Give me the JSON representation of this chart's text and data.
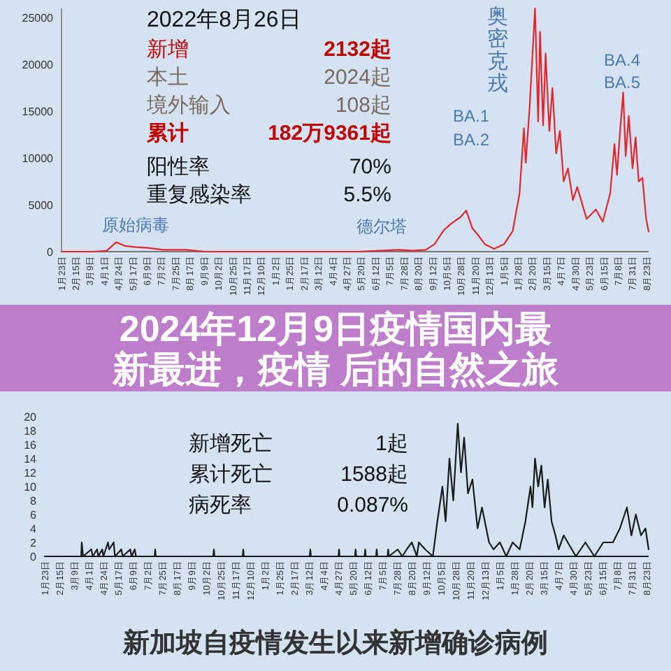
{
  "chart_data": [
    {
      "type": "line",
      "color": "#e3262c",
      "x": [
        "2020-01-23",
        "2020-03-15",
        "2020-04-05",
        "2020-04-20",
        "2020-05-05",
        "2020-05-20",
        "2020-06-10",
        "2020-07-05",
        "2020-08-10",
        "2020-09-10",
        "2020-10-15",
        "2021-01-15",
        "2021-04-20",
        "2021-05-15",
        "2021-07-20",
        "2021-08-10",
        "2021-09-01",
        "2021-09-15",
        "2021-09-30",
        "2021-10-12",
        "2021-10-27",
        "2021-11-05",
        "2021-11-15",
        "2021-11-25",
        "2021-12-05",
        "2021-12-20",
        "2022-01-05",
        "2022-01-19",
        "2022-01-30",
        "2022-02-06",
        "2022-02-09",
        "2022-02-15",
        "2022-02-24",
        "2022-03-01",
        "2022-03-04",
        "2022-03-09",
        "2022-03-13",
        "2022-03-19",
        "2022-03-24",
        "2022-03-30",
        "2022-04-05",
        "2022-04-11",
        "2022-04-18",
        "2022-04-26",
        "2022-05-03",
        "2022-05-18",
        "2022-06-02",
        "2022-06-13",
        "2022-06-25",
        "2022-07-02",
        "2022-07-06",
        "2022-07-11",
        "2022-07-16",
        "2022-07-20",
        "2022-07-25",
        "2022-07-31",
        "2022-08-05",
        "2022-08-10",
        "2022-08-16",
        "2022-08-22",
        "2022-08-26"
      ],
      "values": [
        0,
        0,
        100,
        1000,
        600,
        500,
        400,
        200,
        200,
        0,
        0,
        0,
        0,
        0,
        200,
        100,
        200,
        800,
        2300,
        3000,
        3700,
        4400,
        2500,
        1700,
        800,
        300,
        800,
        2200,
        6200,
        13200,
        9500,
        15200,
        26000,
        13900,
        23500,
        13500,
        21200,
        12900,
        17500,
        10500,
        12900,
        7500,
        8900,
        5500,
        6900,
        3500,
        4500,
        3200,
        6200,
        11500,
        8200,
        12900,
        17000,
        10200,
        14500,
        8900,
        12200,
        7500,
        7900,
        3500,
        2132
      ],
      "ylim": [
        0,
        26000
      ],
      "yticks": [
        0,
        5000,
        10000,
        15000,
        20000,
        25000
      ],
      "xlim": [
        "2020-01-23",
        "2022-08-26"
      ],
      "xticks": [
        {
          "value": "2020-01-23",
          "label": "1月23日"
        },
        {
          "value": "2020-02-15",
          "label": "2月15日"
        },
        {
          "value": "2020-03-09",
          "label": "3月9日"
        },
        {
          "value": "2020-04-01",
          "label": "4月1日"
        },
        {
          "value": "2020-04-24",
          "label": "4月24日"
        },
        {
          "value": "2020-05-17",
          "label": "5月17日"
        },
        {
          "value": "2020-06-09",
          "label": "6月9日"
        },
        {
          "value": "2020-07-02",
          "label": "7月2日"
        },
        {
          "value": "2020-07-25",
          "label": "7月25日"
        },
        {
          "value": "2020-08-17",
          "label": "8月17日"
        },
        {
          "value": "2020-09-09",
          "label": "9月9日"
        },
        {
          "value": "2020-10-02",
          "label": "10月2日"
        },
        {
          "value": "2020-10-25",
          "label": "10月25日"
        },
        {
          "value": "2020-11-17",
          "label": "11月17日"
        },
        {
          "value": "2020-12-10",
          "label": "12月10日"
        },
        {
          "value": "2021-01-02",
          "label": "1月2日"
        },
        {
          "value": "2021-01-25",
          "label": "1月25日"
        },
        {
          "value": "2021-02-17",
          "label": "2月17日"
        },
        {
          "value": "2021-03-12",
          "label": "3月12日"
        },
        {
          "value": "2021-04-04",
          "label": "4月4日"
        },
        {
          "value": "2021-04-27",
          "label": "4月27日"
        },
        {
          "value": "2021-05-20",
          "label": "5月20日"
        },
        {
          "value": "2021-06-12",
          "label": "6月12日"
        },
        {
          "value": "2021-07-05",
          "label": "7月5日"
        },
        {
          "value": "2021-07-28",
          "label": "7月28日"
        },
        {
          "value": "2021-08-20",
          "label": "8月20日"
        },
        {
          "value": "2021-09-12",
          "label": "9月12日"
        },
        {
          "value": "2021-10-05",
          "label": "10月5日"
        },
        {
          "value": "2021-10-28",
          "label": "10月28日"
        },
        {
          "value": "2021-11-20",
          "label": "11月20日"
        },
        {
          "value": "2021-12-13",
          "label": "12月13日"
        },
        {
          "value": "2022-01-05",
          "label": "1月5日"
        },
        {
          "value": "2022-01-28",
          "label": "1月28日"
        },
        {
          "value": "2022-02-20",
          "label": "2月20日"
        },
        {
          "value": "2022-03-15",
          "label": "3月15日"
        },
        {
          "value": "2022-04-07",
          "label": "4月7日"
        },
        {
          "value": "2022-04-30",
          "label": "4月30日"
        },
        {
          "value": "2022-05-23",
          "label": "5月23日"
        },
        {
          "value": "2022-06-15",
          "label": "6月15日"
        },
        {
          "value": "2022-07-08",
          "label": "7月8日"
        },
        {
          "value": "2022-07-31",
          "label": "7月31日"
        },
        {
          "value": "2022-08-23",
          "label": "8月23日"
        }
      ],
      "annotations": [
        "2022年8月26日",
        "新增",
        "2132起",
        "本土",
        "2024起",
        "境外输入",
        "108起",
        "累计",
        "182万9361起",
        "阳性率",
        "70%",
        "重复感染率",
        "5.5%",
        "奥密克戎",
        "BA.1",
        "BA.2",
        "BA.4",
        "BA.5",
        "原始病毒",
        "德尔塔"
      ]
    },
    {
      "type": "line",
      "color": "#1a1a1a",
      "title": "2024年12月9日疫情国内最新最进，疫情 后的自然之旅",
      "x": [
        "2020-01-23",
        "2020-03-20",
        "2020-03-21",
        "2020-03-23",
        "2020-04-05",
        "2020-04-07",
        "2020-04-14",
        "2020-04-16",
        "2020-04-22",
        "2020-04-24",
        "2020-05-01",
        "2020-05-03",
        "2020-05-10",
        "2020-05-12",
        "2020-05-22",
        "2020-05-24",
        "2020-06-05",
        "2020-06-07",
        "2020-06-12",
        "2020-06-14",
        "2020-07-13",
        "2020-07-14",
        "2020-07-15",
        "2020-10-13",
        "2020-10-14",
        "2020-10-15",
        "2020-11-28",
        "2020-11-29",
        "2020-11-30",
        "2021-03-13",
        "2021-03-14",
        "2021-03-15",
        "2021-04-27",
        "2021-04-28",
        "2021-04-29",
        "2021-05-23",
        "2021-05-24",
        "2021-05-25",
        "2021-06-07",
        "2021-06-08",
        "2021-06-09",
        "2021-06-25",
        "2021-06-26",
        "2021-06-27",
        "2021-07-13",
        "2021-07-14",
        "2021-07-15",
        "2021-07-29",
        "2021-08-05",
        "2021-08-12",
        "2021-08-20",
        "2021-08-28",
        "2021-08-31",
        "2021-09-10",
        "2021-09-22",
        "2021-09-29",
        "2021-10-07",
        "2021-10-12",
        "2021-10-18",
        "2021-10-24",
        "2021-10-31",
        "2021-11-05",
        "2021-11-10",
        "2021-11-16",
        "2021-11-23",
        "2021-12-01",
        "2021-12-08",
        "2021-12-19",
        "2021-12-26",
        "2022-01-05",
        "2022-01-15",
        "2022-01-25",
        "2022-02-05",
        "2022-02-14",
        "2022-02-22",
        "2022-02-25",
        "2022-03-01",
        "2022-03-06",
        "2022-03-11",
        "2022-03-16",
        "2022-03-21",
        "2022-03-27",
        "2022-04-02",
        "2022-04-07",
        "2022-04-15",
        "2022-05-04",
        "2022-05-19",
        "2022-06-02",
        "2022-06-16",
        "2022-07-01",
        "2022-07-12",
        "2022-07-23",
        "2022-07-30",
        "2022-08-06",
        "2022-08-14",
        "2022-08-21",
        "2022-08-26"
      ],
      "values": [
        0,
        0,
        2,
        0,
        1,
        0,
        1,
        0,
        1,
        0,
        2,
        1,
        2,
        0,
        1,
        0,
        1,
        0,
        1,
        0,
        0,
        1,
        0,
        0,
        1,
        0,
        0,
        1,
        0,
        0,
        1,
        0,
        0,
        1,
        0,
        0,
        1,
        0,
        0,
        1,
        0,
        0,
        1,
        0,
        0,
        1,
        0,
        1,
        0,
        1,
        2,
        0,
        2,
        1,
        0,
        5,
        10,
        5,
        14,
        8,
        19,
        12,
        17,
        9,
        11,
        4,
        7,
        2,
        1,
        2,
        0,
        2,
        1,
        5,
        10,
        7,
        14,
        10,
        13,
        7,
        11,
        5,
        3,
        1,
        3,
        0,
        2,
        0,
        2,
        2,
        4,
        7,
        3,
        6,
        3,
        4,
        1
      ],
      "ylim": [
        0,
        20
      ],
      "yticks": [
        0,
        2,
        4,
        6,
        8,
        10,
        12,
        14,
        16,
        18,
        20
      ],
      "xlim": [
        "2020-01-23",
        "2022-08-26"
      ],
      "xticks": [
        {
          "value": "2020-01-23",
          "label": "1月23日"
        },
        {
          "value": "2020-02-15",
          "label": "2月15日"
        },
        {
          "value": "2020-03-09",
          "label": "3月9日"
        },
        {
          "value": "2020-04-01",
          "label": "4月1日"
        },
        {
          "value": "2020-04-24",
          "label": "4月24日"
        },
        {
          "value": "2020-05-17",
          "label": "5月17日"
        },
        {
          "value": "2020-06-09",
          "label": "6月9日"
        },
        {
          "value": "2020-07-02",
          "label": "7月2日"
        },
        {
          "value": "2020-07-25",
          "label": "7月25日"
        },
        {
          "value": "2020-08-17",
          "label": "8月17日"
        },
        {
          "value": "2020-09-09",
          "label": "9月9日"
        },
        {
          "value": "2020-10-02",
          "label": "10月2日"
        },
        {
          "value": "2020-10-25",
          "label": "10月25日"
        },
        {
          "value": "2020-11-17",
          "label": "11月17日"
        },
        {
          "value": "2020-12-10",
          "label": "12月10日"
        },
        {
          "value": "2021-01-02",
          "label": "1月2日"
        },
        {
          "value": "2021-01-25",
          "label": "1月25日"
        },
        {
          "value": "2021-02-17",
          "label": "2月17日"
        },
        {
          "value": "2021-03-12",
          "label": "3月12日"
        },
        {
          "value": "2021-04-04",
          "label": "4月4日"
        },
        {
          "value": "2021-04-27",
          "label": "4月27日"
        },
        {
          "value": "2021-05-20",
          "label": "5月20日"
        },
        {
          "value": "2021-06-12",
          "label": "6月12日"
        },
        {
          "value": "2021-07-05",
          "label": "7月5日"
        },
        {
          "value": "2021-07-28",
          "label": "7月28日"
        },
        {
          "value": "2021-08-20",
          "label": "8月20日"
        },
        {
          "value": "2021-09-12",
          "label": "9月12日"
        },
        {
          "value": "2021-10-05",
          "label": "10月5日"
        },
        {
          "value": "2021-10-28",
          "label": "10月28日"
        },
        {
          "value": "2021-11-20",
          "label": "11月20日"
        },
        {
          "value": "2021-12-13",
          "label": "12月13日"
        },
        {
          "value": "2022-01-05",
          "label": "1月5日"
        },
        {
          "value": "2022-01-28",
          "label": "1月28日"
        },
        {
          "value": "2022-02-20",
          "label": "2月20日"
        },
        {
          "value": "2022-03-15",
          "label": "3月15日"
        },
        {
          "value": "2022-04-07",
          "label": "4月7日"
        },
        {
          "value": "2022-04-30",
          "label": "4月30日"
        },
        {
          "value": "2022-05-23",
          "label": "5月23日"
        },
        {
          "value": "2022-06-15",
          "label": "6月15日"
        },
        {
          "value": "2022-07-08",
          "label": "7月8日"
        },
        {
          "value": "2022-07-31",
          "label": "7月31日"
        },
        {
          "value": "2022-08-23",
          "label": "8月23日"
        }
      ],
      "annotations": [
        "新增死亡",
        "1起",
        "累计死亡",
        "1588起",
        "病死率",
        "0.087%",
        "新加坡自疫情发生以来新增确诊病例"
      ]
    }
  ]
}
